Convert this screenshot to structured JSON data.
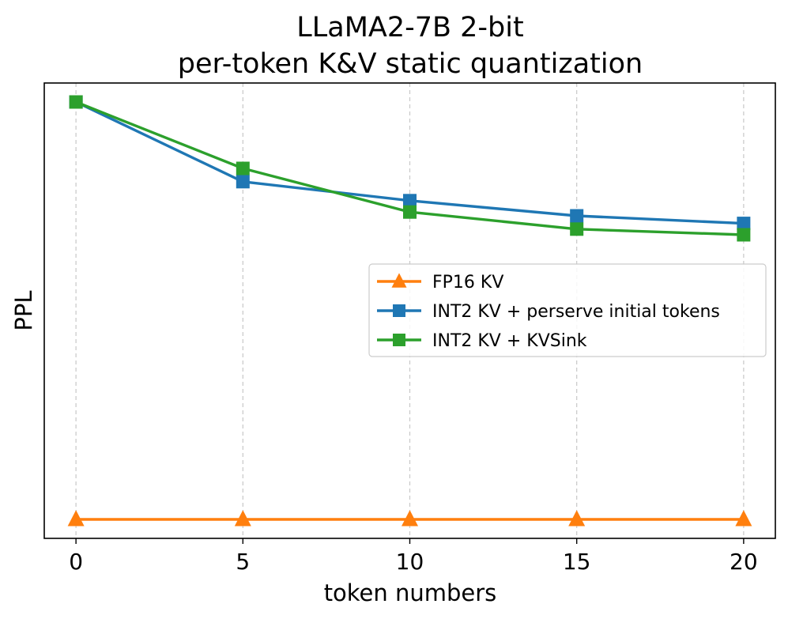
{
  "chart_data": {
    "type": "line",
    "title_line1": "LLaMA2-7B 2-bit",
    "title_line2": "per-token K&V static quantization",
    "xlabel": "token numbers",
    "ylabel": "PPL",
    "x": [
      0,
      5,
      10,
      15,
      20
    ],
    "xticks": [
      "0",
      "5",
      "10",
      "15",
      "20"
    ],
    "xlim": [
      -0.95,
      20.95
    ],
    "ylim": [
      0.78,
      1.02
    ],
    "yticks_shown": false,
    "grid": "x-only dashed",
    "legend_position": "center-right",
    "series": [
      {
        "name": "FP16 KV",
        "color": "#ff7f0e",
        "marker": "triangle",
        "values": [
          0.79,
          0.79,
          0.79,
          0.79,
          0.79
        ]
      },
      {
        "name": "INT2 KV + perserve initial tokens",
        "color": "#1f77b4",
        "marker": "square",
        "values": [
          1.01,
          0.968,
          0.958,
          0.95,
          0.946
        ]
      },
      {
        "name": "INT2 KV + KVSink",
        "color": "#2ca02c",
        "marker": "square",
        "values": [
          1.01,
          0.975,
          0.952,
          0.943,
          0.94
        ]
      }
    ]
  }
}
